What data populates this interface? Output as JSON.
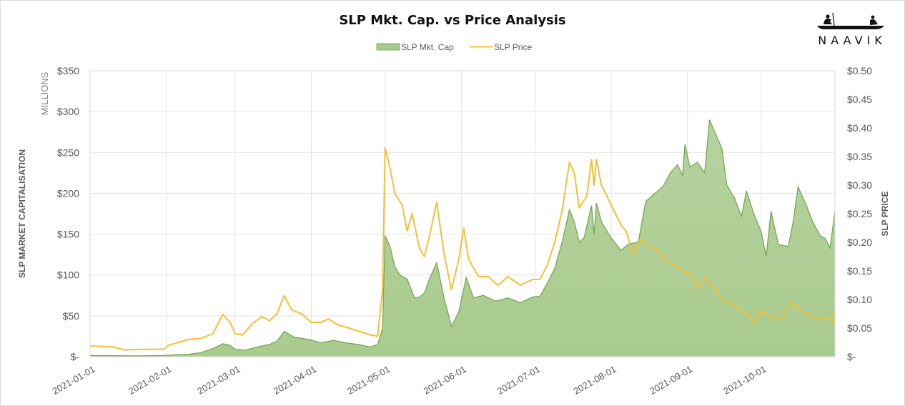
{
  "logo": {
    "text": "NAAVIK"
  },
  "chart_data": {
    "type": "area+line",
    "title": "SLP Mkt. Cap. vs Price Analysis",
    "legend": {
      "position": "top",
      "entries": [
        "SLP Mkt. Cap",
        "SLP Price"
      ]
    },
    "colors": {
      "mktcap_fill": "#a9cb8e",
      "mktcap_line": "#70a34c",
      "price_line": "#f5bf35",
      "grid": "#e3e3e3"
    },
    "grid": true,
    "x_start": "2021-01-01",
    "x_end": "2021-10-31",
    "x_ticks": [
      "2021-01-01",
      "2021-02-01",
      "2021-03-01",
      "2021-04-01",
      "2021-05-01",
      "2021-06-01",
      "2021-07-01",
      "2021-08-01",
      "2021-09-01",
      "2021-10-01"
    ],
    "y_left": {
      "label": "SLP MARKET CAPITALISATION",
      "unit": "MILLIONS",
      "range": [
        0,
        350
      ],
      "tick_values": [
        0,
        50,
        100,
        150,
        200,
        250,
        300,
        350
      ],
      "tick_labels": [
        "$-",
        "$50",
        "$100",
        "$150",
        "$200",
        "$250",
        "$300",
        "$350"
      ]
    },
    "y_right": {
      "label": "SLP PRICE",
      "range": [
        0,
        0.5
      ],
      "tick_values": [
        0,
        0.05,
        0.1,
        0.15,
        0.2,
        0.25,
        0.3,
        0.35,
        0.4,
        0.45,
        0.5
      ],
      "tick_labels": [
        "$-",
        "$0.05",
        "$0.10",
        "$0.15",
        "$0.20",
        "$0.25",
        "$0.30",
        "$0.35",
        "$0.40",
        "$0.45",
        "$0.50"
      ]
    },
    "series": [
      {
        "name": "SLP Mkt. Cap",
        "axis": "left",
        "unit": "USD millions",
        "points": [
          [
            "2021-01-01",
            1.5
          ],
          [
            "2021-01-10",
            1.2
          ],
          [
            "2021-01-20",
            1.0
          ],
          [
            "2021-01-31",
            1.5
          ],
          [
            "2021-02-10",
            3
          ],
          [
            "2021-02-15",
            5
          ],
          [
            "2021-02-20",
            10
          ],
          [
            "2021-02-24",
            16
          ],
          [
            "2021-02-27",
            14
          ],
          [
            "2021-03-01",
            9
          ],
          [
            "2021-03-05",
            8
          ],
          [
            "2021-03-10",
            12
          ],
          [
            "2021-03-15",
            15
          ],
          [
            "2021-03-18",
            19
          ],
          [
            "2021-03-21",
            31
          ],
          [
            "2021-03-25",
            24
          ],
          [
            "2021-03-31",
            21
          ],
          [
            "2021-04-05",
            17
          ],
          [
            "2021-04-10",
            20
          ],
          [
            "2021-04-15",
            17
          ],
          [
            "2021-04-20",
            15
          ],
          [
            "2021-04-25",
            12
          ],
          [
            "2021-04-28",
            15
          ],
          [
            "2021-04-30",
            35
          ],
          [
            "2021-05-01",
            148
          ],
          [
            "2021-05-03",
            135
          ],
          [
            "2021-05-05",
            110
          ],
          [
            "2021-05-07",
            100
          ],
          [
            "2021-05-10",
            95
          ],
          [
            "2021-05-13",
            72
          ],
          [
            "2021-05-15",
            73
          ],
          [
            "2021-05-17",
            78
          ],
          [
            "2021-05-19",
            95
          ],
          [
            "2021-05-22",
            115
          ],
          [
            "2021-05-25",
            72
          ],
          [
            "2021-05-28",
            37
          ],
          [
            "2021-05-31",
            55
          ],
          [
            "2021-06-03",
            97
          ],
          [
            "2021-06-06",
            72
          ],
          [
            "2021-06-10",
            75
          ],
          [
            "2021-06-15",
            68
          ],
          [
            "2021-06-20",
            72
          ],
          [
            "2021-06-25",
            66
          ],
          [
            "2021-06-30",
            73
          ],
          [
            "2021-07-03",
            74
          ],
          [
            "2021-07-06",
            90
          ],
          [
            "2021-07-09",
            108
          ],
          [
            "2021-07-12",
            140
          ],
          [
            "2021-07-15",
            180
          ],
          [
            "2021-07-17",
            165
          ],
          [
            "2021-07-19",
            140
          ],
          [
            "2021-07-21",
            146
          ],
          [
            "2021-07-24",
            185
          ],
          [
            "2021-07-25",
            150
          ],
          [
            "2021-07-26",
            188
          ],
          [
            "2021-07-28",
            165
          ],
          [
            "2021-08-01",
            145
          ],
          [
            "2021-08-05",
            130
          ],
          [
            "2021-08-08",
            138
          ],
          [
            "2021-08-12",
            140
          ],
          [
            "2021-08-15",
            190
          ],
          [
            "2021-08-18",
            198
          ],
          [
            "2021-08-22",
            208
          ],
          [
            "2021-08-25",
            225
          ],
          [
            "2021-08-28",
            235
          ],
          [
            "2021-08-30",
            222
          ],
          [
            "2021-08-31",
            260
          ],
          [
            "2021-09-02",
            232
          ],
          [
            "2021-09-05",
            238
          ],
          [
            "2021-09-08",
            225
          ],
          [
            "2021-09-10",
            290
          ],
          [
            "2021-09-15",
            255
          ],
          [
            "2021-09-17",
            210
          ],
          [
            "2021-09-20",
            195
          ],
          [
            "2021-09-23",
            172
          ],
          [
            "2021-09-25",
            203
          ],
          [
            "2021-09-28",
            175
          ],
          [
            "2021-10-01",
            153
          ],
          [
            "2021-10-03",
            123
          ],
          [
            "2021-10-05",
            178
          ],
          [
            "2021-10-08",
            137
          ],
          [
            "2021-10-12",
            135
          ],
          [
            "2021-10-14",
            165
          ],
          [
            "2021-10-16",
            208
          ],
          [
            "2021-10-19",
            188
          ],
          [
            "2021-10-22",
            165
          ],
          [
            "2021-10-25",
            148
          ],
          [
            "2021-10-27",
            145
          ],
          [
            "2021-10-29",
            133
          ],
          [
            "2021-10-31",
            178
          ]
        ]
      },
      {
        "name": "SLP Price",
        "axis": "right",
        "unit": "USD",
        "points": [
          [
            "2021-01-01",
            0.019
          ],
          [
            "2021-01-10",
            0.017
          ],
          [
            "2021-01-15",
            0.012
          ],
          [
            "2021-01-25",
            0.013
          ],
          [
            "2021-01-31",
            0.013
          ],
          [
            "2021-02-02",
            0.02
          ],
          [
            "2021-02-05",
            0.024
          ],
          [
            "2021-02-10",
            0.03
          ],
          [
            "2021-02-15",
            0.032
          ],
          [
            "2021-02-20",
            0.04
          ],
          [
            "2021-02-24",
            0.074
          ],
          [
            "2021-02-27",
            0.06
          ],
          [
            "2021-03-01",
            0.04
          ],
          [
            "2021-03-04",
            0.038
          ],
          [
            "2021-03-08",
            0.058
          ],
          [
            "2021-03-12",
            0.07
          ],
          [
            "2021-03-15",
            0.063
          ],
          [
            "2021-03-18",
            0.075
          ],
          [
            "2021-03-21",
            0.107
          ],
          [
            "2021-03-24",
            0.082
          ],
          [
            "2021-03-28",
            0.075
          ],
          [
            "2021-04-01",
            0.06
          ],
          [
            "2021-04-05",
            0.06
          ],
          [
            "2021-04-08",
            0.066
          ],
          [
            "2021-04-12",
            0.055
          ],
          [
            "2021-04-15",
            0.052
          ],
          [
            "2021-04-20",
            0.045
          ],
          [
            "2021-04-25",
            0.038
          ],
          [
            "2021-04-28",
            0.036
          ],
          [
            "2021-04-30",
            0.12
          ],
          [
            "2021-05-01",
            0.365
          ],
          [
            "2021-05-03",
            0.33
          ],
          [
            "2021-05-05",
            0.285
          ],
          [
            "2021-05-08",
            0.265
          ],
          [
            "2021-05-10",
            0.22
          ],
          [
            "2021-05-12",
            0.25
          ],
          [
            "2021-05-15",
            0.19
          ],
          [
            "2021-05-17",
            0.175
          ],
          [
            "2021-05-19",
            0.21
          ],
          [
            "2021-05-22",
            0.27
          ],
          [
            "2021-05-25",
            0.18
          ],
          [
            "2021-05-28",
            0.117
          ],
          [
            "2021-05-31",
            0.17
          ],
          [
            "2021-06-02",
            0.225
          ],
          [
            "2021-06-04",
            0.17
          ],
          [
            "2021-06-08",
            0.14
          ],
          [
            "2021-06-12",
            0.14
          ],
          [
            "2021-06-16",
            0.125
          ],
          [
            "2021-06-20",
            0.14
          ],
          [
            "2021-06-25",
            0.125
          ],
          [
            "2021-06-30",
            0.135
          ],
          [
            "2021-07-03",
            0.135
          ],
          [
            "2021-07-06",
            0.16
          ],
          [
            "2021-07-09",
            0.2
          ],
          [
            "2021-07-12",
            0.255
          ],
          [
            "2021-07-15",
            0.34
          ],
          [
            "2021-07-17",
            0.32
          ],
          [
            "2021-07-19",
            0.26
          ],
          [
            "2021-07-22",
            0.28
          ],
          [
            "2021-07-24",
            0.345
          ],
          [
            "2021-07-25",
            0.3
          ],
          [
            "2021-07-26",
            0.345
          ],
          [
            "2021-07-28",
            0.3
          ],
          [
            "2021-08-01",
            0.265
          ],
          [
            "2021-08-05",
            0.23
          ],
          [
            "2021-08-07",
            0.22
          ],
          [
            "2021-08-10",
            0.18
          ],
          [
            "2021-08-13",
            0.205
          ],
          [
            "2021-08-16",
            0.195
          ],
          [
            "2021-08-20",
            0.185
          ],
          [
            "2021-08-23",
            0.17
          ],
          [
            "2021-08-27",
            0.16
          ],
          [
            "2021-08-30",
            0.15
          ],
          [
            "2021-09-02",
            0.145
          ],
          [
            "2021-09-05",
            0.12
          ],
          [
            "2021-09-08",
            0.14
          ],
          [
            "2021-09-12",
            0.12
          ],
          [
            "2021-09-15",
            0.1
          ],
          [
            "2021-09-20",
            0.09
          ],
          [
            "2021-09-25",
            0.075
          ],
          [
            "2021-09-28",
            0.06
          ],
          [
            "2021-10-01",
            0.082
          ],
          [
            "2021-10-05",
            0.068
          ],
          [
            "2021-10-10",
            0.068
          ],
          [
            "2021-10-13",
            0.095
          ],
          [
            "2021-10-16",
            0.085
          ],
          [
            "2021-10-20",
            0.072
          ],
          [
            "2021-10-24",
            0.068
          ],
          [
            "2021-10-28",
            0.068
          ],
          [
            "2021-10-30",
            0.063
          ],
          [
            "2021-10-31",
            0.08
          ]
        ]
      }
    ]
  }
}
